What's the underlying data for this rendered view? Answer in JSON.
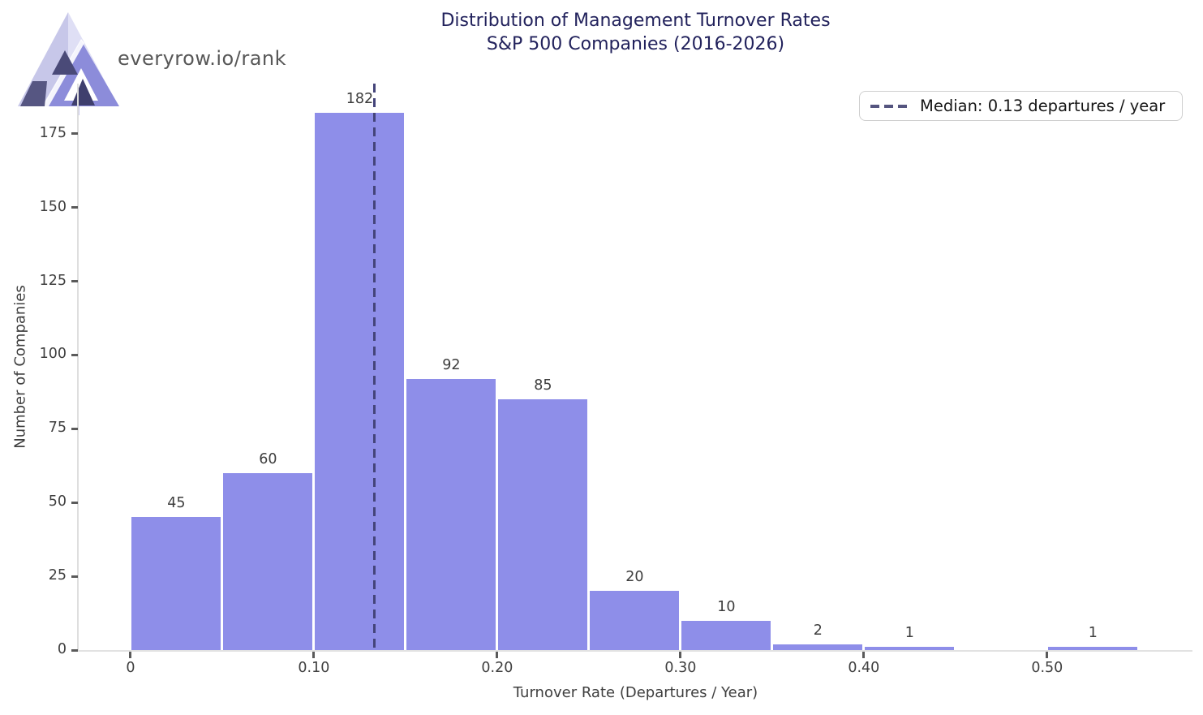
{
  "brand": {
    "site": "everyrow.io/rank",
    "logo_icon": "everyrow-triangle-logo"
  },
  "title": {
    "line1": "Distribution of Management Turnover Rates",
    "line2": "S&P 500 Companies (2016-2026)"
  },
  "legend": {
    "label": "Median: 0.13 departures / year",
    "position": "upper right"
  },
  "chart_data": {
    "type": "bar",
    "subtype": "histogram",
    "title": "Distribution of Management Turnover Rates — S&P 500 Companies (2016-2026)",
    "xlabel": "Turnover Rate (Departures / Year)",
    "ylabel": "Number of Companies",
    "bin_width": 0.05,
    "bins": [
      {
        "x0": 0.0,
        "x1": 0.05,
        "count": 45
      },
      {
        "x0": 0.05,
        "x1": 0.1,
        "count": 60
      },
      {
        "x0": 0.1,
        "x1": 0.15,
        "count": 182
      },
      {
        "x0": 0.15,
        "x1": 0.2,
        "count": 92
      },
      {
        "x0": 0.2,
        "x1": 0.25,
        "count": 85
      },
      {
        "x0": 0.25,
        "x1": 0.3,
        "count": 20
      },
      {
        "x0": 0.3,
        "x1": 0.35,
        "count": 10
      },
      {
        "x0": 0.35,
        "x1": 0.4,
        "count": 2
      },
      {
        "x0": 0.4,
        "x1": 0.45,
        "count": 1
      },
      {
        "x0": 0.5,
        "x1": 0.55,
        "count": 1
      }
    ],
    "x_ticks": [
      {
        "value": 0.0,
        "label": "0"
      },
      {
        "value": 0.1,
        "label": "0.10"
      },
      {
        "value": 0.2,
        "label": "0.20"
      },
      {
        "value": 0.3,
        "label": "0.30"
      },
      {
        "value": 0.4,
        "label": "0.40"
      },
      {
        "value": 0.5,
        "label": "0.50"
      }
    ],
    "y_ticks": [
      0,
      25,
      50,
      75,
      100,
      125,
      150,
      175
    ],
    "xlim": [
      -0.0283,
      0.5793
    ],
    "ylim": [
      0,
      192
    ],
    "median": {
      "value": 0.133,
      "label_value": "0.13"
    },
    "grid": false,
    "bar_color": "#8e8ee9",
    "median_color": "#44447a",
    "title_color": "#22225c"
  }
}
